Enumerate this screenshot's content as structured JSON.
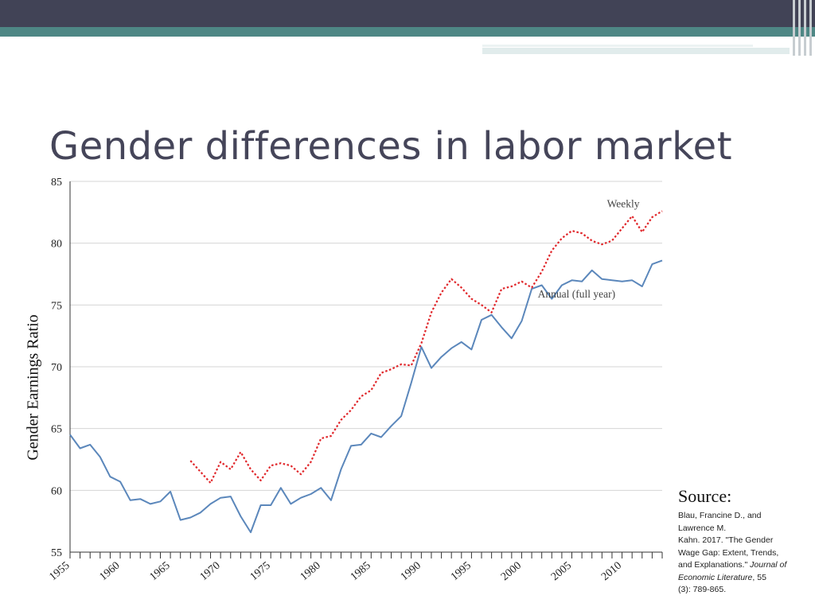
{
  "slide": {
    "title": "Gender differences in labor market",
    "colors": {
      "top_band": "#414356",
      "teal": "#4e8785",
      "light_strip": "#c9dcdc"
    }
  },
  "source": {
    "heading": "Source:",
    "lines": [
      "Blau, Francine D., and",
      "Lawrence M.",
      "Kahn. 2017. \"The Gender",
      "Wage Gap: Extent, Trends,",
      "and Explanations.\""
    ],
    "journal": "Journal of Economic Literature",
    "issue_tail": ", 55",
    "pages": "(3): 789-865."
  },
  "chart_data": {
    "type": "line",
    "ylabel": "Gender Earnings Ratio",
    "xlabel": "",
    "xlim": [
      1955,
      2014
    ],
    "ylim": [
      55,
      85
    ],
    "yticks": [
      55,
      60,
      65,
      70,
      75,
      80,
      85
    ],
    "xticks": [
      1955,
      1960,
      1965,
      1970,
      1975,
      1980,
      1985,
      1990,
      1995,
      2000,
      2005,
      2010
    ],
    "grid": "horizontal",
    "series": [
      {
        "name": "Annual (full year)",
        "color": "#5b87bb",
        "style": "solid",
        "x": [
          1955,
          1956,
          1957,
          1958,
          1959,
          1960,
          1961,
          1962,
          1963,
          1964,
          1965,
          1966,
          1967,
          1968,
          1969,
          1970,
          1971,
          1972,
          1973,
          1974,
          1975,
          1976,
          1977,
          1978,
          1979,
          1980,
          1981,
          1982,
          1983,
          1984,
          1985,
          1986,
          1987,
          1988,
          1989,
          1990,
          1991,
          1992,
          1993,
          1994,
          1995,
          1996,
          1997,
          1998,
          1999,
          2000,
          2001,
          2002,
          2003,
          2004,
          2005,
          2006,
          2007,
          2008,
          2009,
          2010,
          2011,
          2012,
          2013,
          2014
        ],
        "values": [
          64.5,
          63.4,
          63.7,
          62.7,
          61.1,
          60.7,
          59.2,
          59.3,
          58.9,
          59.1,
          59.9,
          57.6,
          57.8,
          58.2,
          58.9,
          59.4,
          59.5,
          57.9,
          56.6,
          58.8,
          58.8,
          60.2,
          58.9,
          59.4,
          59.7,
          60.2,
          59.2,
          61.7,
          63.6,
          63.7,
          64.6,
          64.3,
          65.2,
          66.0,
          68.7,
          71.6,
          69.9,
          70.8,
          71.5,
          72.0,
          71.4,
          73.8,
          74.2,
          73.2,
          72.3,
          73.7,
          76.3,
          76.6,
          75.5,
          76.6,
          77.0,
          76.9,
          77.8,
          77.1,
          77.0,
          76.9,
          77.0,
          76.5,
          78.3,
          78.6
        ]
      },
      {
        "name": "Weekly",
        "color": "#e0262a",
        "style": "dotted",
        "x": [
          1967,
          1968,
          1969,
          1970,
          1971,
          1972,
          1973,
          1974,
          1975,
          1976,
          1977,
          1978,
          1979,
          1980,
          1981,
          1982,
          1983,
          1984,
          1985,
          1986,
          1987,
          1988,
          1989,
          1990,
          1991,
          1992,
          1993,
          1994,
          1995,
          1996,
          1997,
          1998,
          1999,
          2000,
          2001,
          2002,
          2003,
          2004,
          2005,
          2006,
          2007,
          2008,
          2009,
          2010,
          2011,
          2012,
          2013,
          2014
        ],
        "values": [
          62.4,
          61.5,
          60.6,
          62.3,
          61.7,
          63.1,
          61.7,
          60.8,
          62.0,
          62.2,
          62.0,
          61.3,
          62.3,
          64.2,
          64.4,
          65.7,
          66.5,
          67.6,
          68.1,
          69.5,
          69.8,
          70.2,
          70.1,
          71.9,
          74.4,
          76.0,
          77.1,
          76.4,
          75.5,
          75.0,
          74.4,
          76.3,
          76.5,
          76.9,
          76.4,
          77.7,
          79.4,
          80.4,
          81.0,
          80.8,
          80.2,
          79.9,
          80.2,
          81.2,
          82.2,
          80.9,
          82.1,
          82.6
        ]
      }
    ],
    "annotations": [
      {
        "series": "Weekly",
        "text": "Weekly",
        "x": 2008.5,
        "y": 82.9
      },
      {
        "series": "Annual (full year)",
        "text": "Annual (full year)",
        "x": 2001.6,
        "y": 75.6
      }
    ]
  }
}
